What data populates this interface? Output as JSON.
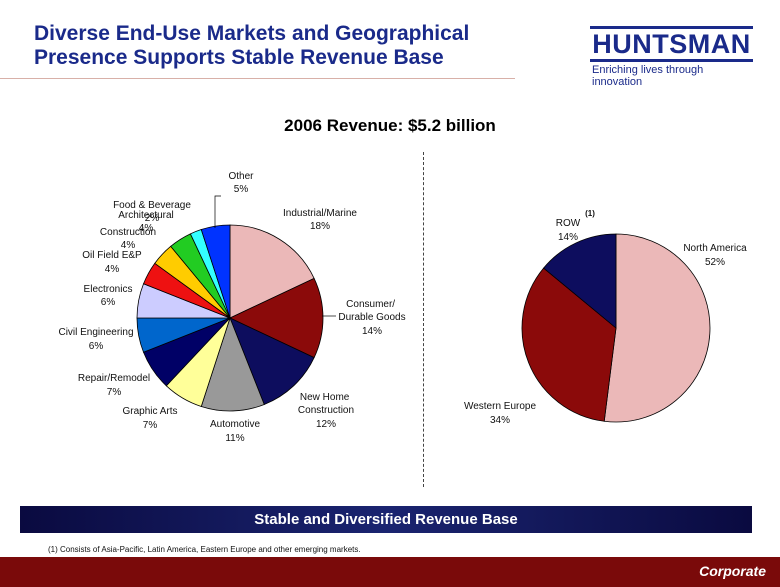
{
  "slide": {
    "title_line1": "Diverse End-Use Markets and Geographical",
    "title_line2": "Presence Supports Stable Revenue Base"
  },
  "logo": {
    "name": "HUNTSMAN",
    "tagline": "Enriching lives through innovation"
  },
  "chart_heading": "2006 Revenue: $5.2 billion",
  "chart_data": [
    {
      "type": "pie",
      "title": "",
      "slices": [
        {
          "label": "Industrial/Marine",
          "pct_label": "18%",
          "value": 18,
          "color": "#ebb8b8"
        },
        {
          "label": "Consumer/ Durable Goods",
          "pct_label": "14%",
          "value": 14,
          "color": "#8b0a0a"
        },
        {
          "label": "New Home Construction",
          "pct_label": "12%",
          "value": 12,
          "color": "#0d0d5e"
        },
        {
          "label": "Automotive",
          "pct_label": "11%",
          "value": 11,
          "color": "#999999"
        },
        {
          "label": "Graphic Arts",
          "pct_label": "7%",
          "value": 7,
          "color": "#ffff99"
        },
        {
          "label": "Repair/Remodel",
          "pct_label": "7%",
          "value": 7,
          "color": "#000066"
        },
        {
          "label": "Civil Engineering",
          "pct_label": "6%",
          "value": 6,
          "color": "#0066cc"
        },
        {
          "label": "Electronics",
          "pct_label": "6%",
          "value": 6,
          "color": "#ccccff"
        },
        {
          "label": "Oil Field E&P",
          "pct_label": "4%",
          "value": 4,
          "color": "#ee1111"
        },
        {
          "label": "Construction",
          "pct_label": "4%",
          "value": 4,
          "color": "#ffcc00"
        },
        {
          "label": "Architectural",
          "pct_label": "4%",
          "value": 4,
          "color": "#22cc22"
        },
        {
          "label": "Food & Beverage",
          "pct_label": "2%",
          "value": 2,
          "color": "#33ffff"
        },
        {
          "label": "Other",
          "pct_label": "5%",
          "value": 5,
          "color": "#0033ff"
        }
      ]
    },
    {
      "type": "pie",
      "title": "",
      "slices": [
        {
          "label": "North America",
          "pct_label": "52%",
          "value": 52,
          "color": "#ebb8b8"
        },
        {
          "label": "Western Europe",
          "pct_label": "34%",
          "value": 34,
          "color": "#8b0a0a"
        },
        {
          "label": "ROW",
          "pct_label": "14%",
          "value": 14,
          "color": "#0d0d5e",
          "footnote_mark": "(1)"
        }
      ]
    }
  ],
  "banner": "Stable and Diversified Revenue Base",
  "footnote": "(1)    Consists of Asia-Pacific, Latin America, Eastern Europe and other emerging markets.",
  "section_label": "Corporate"
}
